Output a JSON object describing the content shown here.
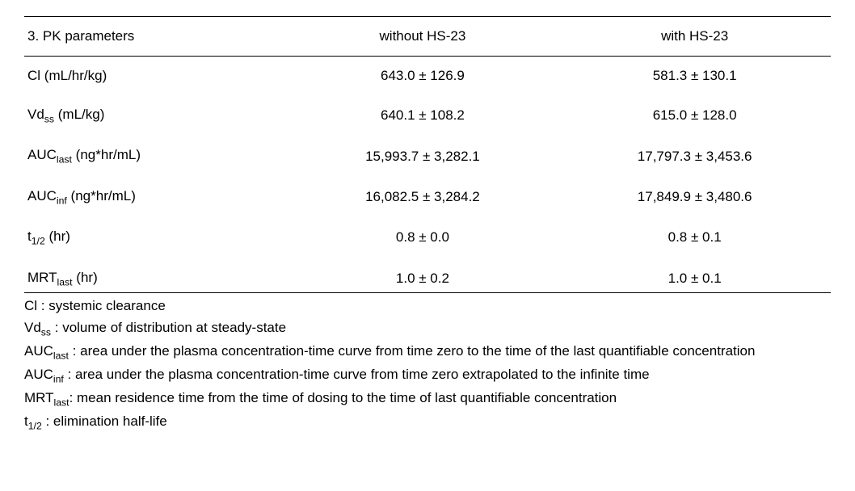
{
  "table": {
    "header": {
      "title_prefix": "3.",
      "title_rest": "PK  parameters",
      "col1": "without  HS-23",
      "col2": "with  HS-23"
    },
    "rows": [
      {
        "param_main": "Cl",
        "param_sub": "",
        "unit": "  (mL/hr/kg)",
        "c1": "643.0  ±  126.9",
        "c2": "581.3  ±  130.1"
      },
      {
        "param_main": "Vd",
        "param_sub": "ss",
        "unit": "  (mL/kg)",
        "c1": "640.1  ±  108.2",
        "c2": "615.0  ±  128.0"
      },
      {
        "param_main": "AUC",
        "param_sub": "last",
        "unit": "  (ng*hr/mL)",
        "c1": "15,993.7  ±  3,282.1",
        "c2": "17,797.3  ±  3,453.6"
      },
      {
        "param_main": "AUC",
        "param_sub": "inf",
        "unit": "  (ng*hr/mL)",
        "c1": "16,082.5  ±  3,284.2",
        "c2": "17,849.9  ±  3,480.6"
      },
      {
        "param_main": "t",
        "param_sub": "1/2",
        "unit": "  (hr)",
        "c1": "0.8  ±  0.0",
        "c2": "0.8  ±  0.1"
      },
      {
        "param_main": "MRT",
        "param_sub": "last",
        "unit": "  (hr)",
        "c1": "1.0  ±  0.2",
        "c2": "1.0  ±  0.1"
      }
    ]
  },
  "footnotes": [
    {
      "pre": "Cl",
      "sub": "",
      "post": "  :  systemic  clearance"
    },
    {
      "pre": "Vd",
      "sub": "ss",
      "post": "  :  volume  of  distribution  at  steady-state"
    },
    {
      "pre": "AUC",
      "sub": "last",
      "post": "  :  area  under  the  plasma  concentration-time  curve  from  time  zero  to  the  time  of  the  last  quantifiable  concentration"
    },
    {
      "pre": "AUC",
      "sub": "inf",
      "post": "  :  area  under  the  plasma  concentration-time  curve  from  time  zero  extrapolated  to  the  infinite  time"
    },
    {
      "pre": "MRT",
      "sub": "last",
      "post": ":  mean  residence  time  from  the  time  of  dosing  to  the  time  of  last  quantifiable  concentration"
    },
    {
      "pre": "t",
      "sub": "1/2",
      "post": "  :  elimination  half-life"
    }
  ]
}
